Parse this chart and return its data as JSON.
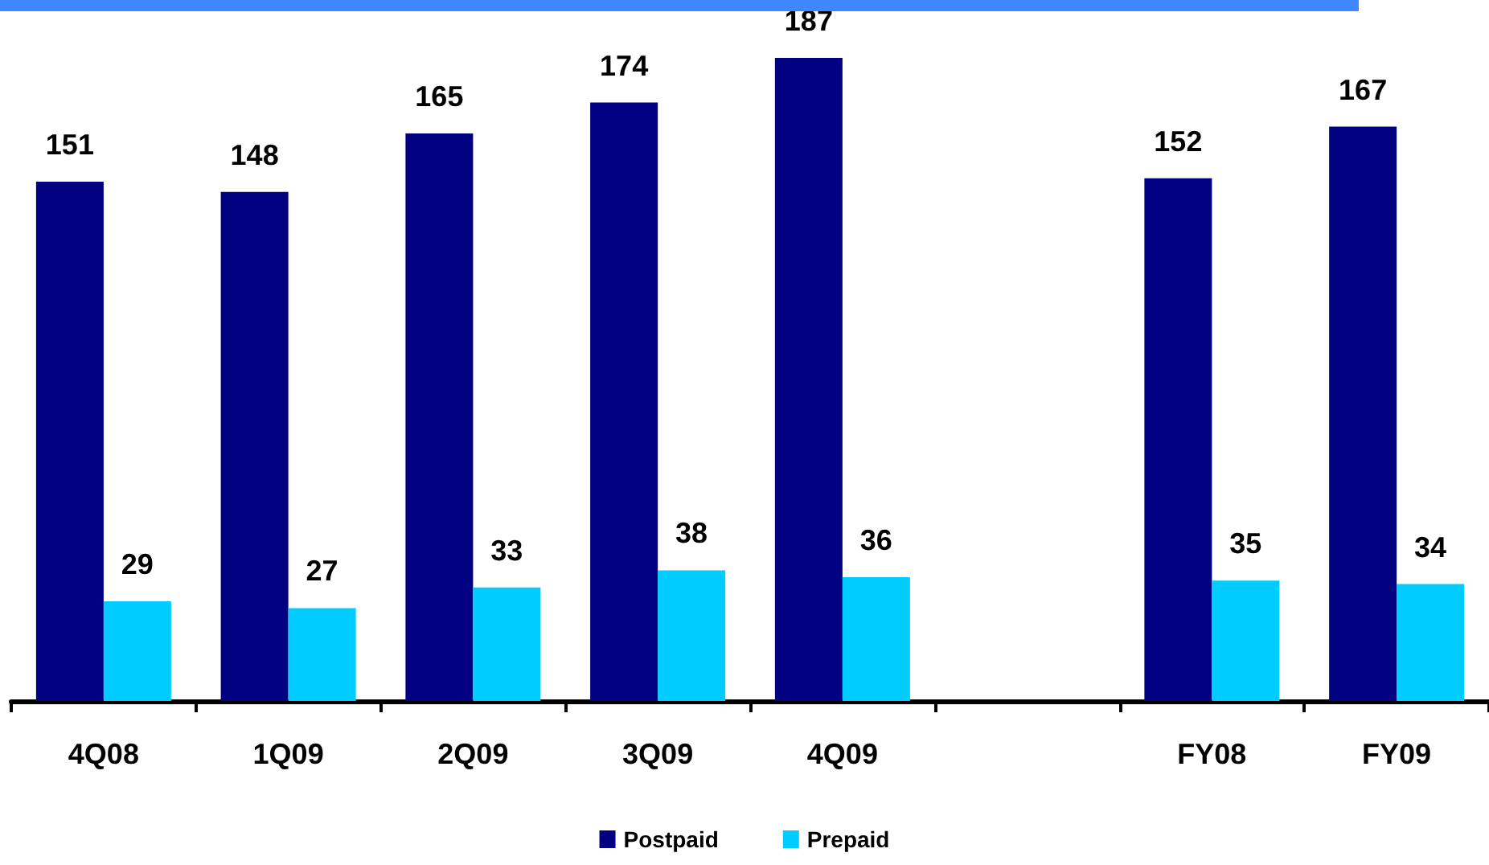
{
  "chart_data": {
    "type": "bar",
    "categories": [
      "4Q08",
      "1Q09",
      "2Q09",
      "3Q09",
      "4Q09",
      null,
      "FY08",
      "FY09"
    ],
    "series": [
      {
        "name": "Postpaid",
        "color": "#000080",
        "values": [
          151,
          148,
          165,
          174,
          187,
          null,
          152,
          167
        ]
      },
      {
        "name": "Prepaid",
        "color": "#00ccff",
        "values": [
          29,
          27,
          33,
          38,
          36,
          null,
          35,
          34
        ]
      }
    ],
    "data_labels": true,
    "legend": "bottom",
    "tick_labels": "x"
  }
}
